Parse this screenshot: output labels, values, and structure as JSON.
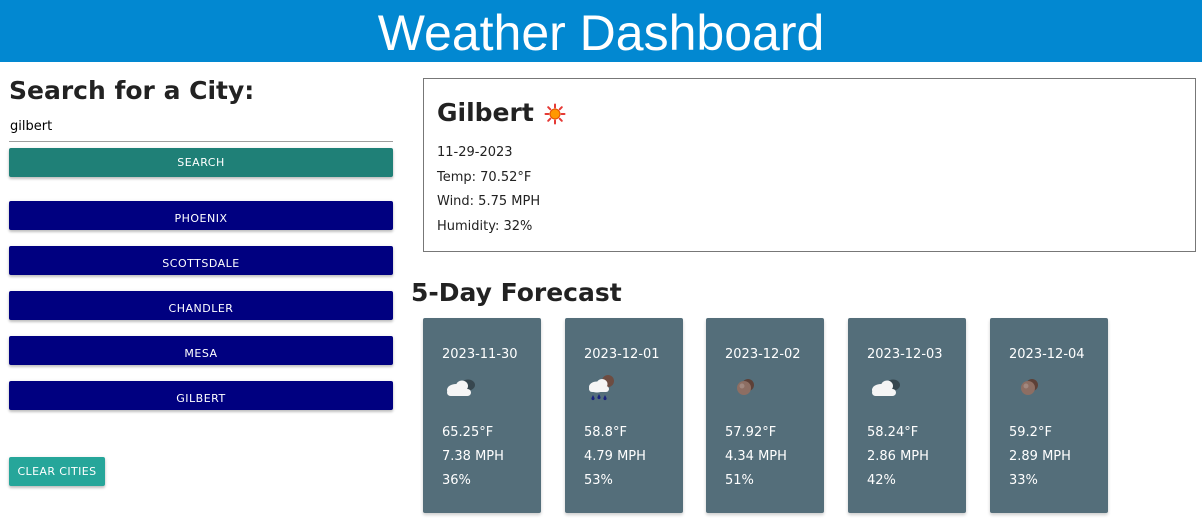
{
  "header": {
    "title": "Weather Dashboard"
  },
  "search": {
    "title": "Search for a City:",
    "input_value": "gilbert",
    "button_label": "SEARCH"
  },
  "history": {
    "cities": [
      "PHOENIX",
      "SCOTTSDALE",
      "CHANDLER",
      "MESA",
      "GILBERT"
    ],
    "clear_label": "CLEAR CITIES"
  },
  "current": {
    "city": "Gilbert",
    "icon": "sun-icon",
    "date": "11-29-2023",
    "temp": "Temp: 70.52°F",
    "wind": "Wind: 5.75 MPH",
    "humidity": "Humidity: 32%"
  },
  "forecast": {
    "title": "5-Day Forecast",
    "days": [
      {
        "date": "2023-11-30",
        "icon": "cloud-icon",
        "temp": "65.25°F",
        "wind": "7.38 MPH",
        "humidity": "36%"
      },
      {
        "date": "2023-12-01",
        "icon": "rain-cloud-icon",
        "temp": "58.8°F",
        "wind": "4.79 MPH",
        "humidity": "53%"
      },
      {
        "date": "2023-12-02",
        "icon": "overcast-icon",
        "temp": "57.92°F",
        "wind": "4.34 MPH",
        "humidity": "51%"
      },
      {
        "date": "2023-12-03",
        "icon": "cloud-icon",
        "temp": "58.24°F",
        "wind": "2.86 MPH",
        "humidity": "42%"
      },
      {
        "date": "2023-12-04",
        "icon": "overcast-icon",
        "temp": "59.2°F",
        "wind": "2.89 MPH",
        "humidity": "33%"
      }
    ]
  },
  "colors": {
    "header": "#0288d1",
    "search_button": "#1f8077",
    "city_button": "#000080",
    "clear_button": "#26a69a",
    "card": "#546e7a"
  }
}
